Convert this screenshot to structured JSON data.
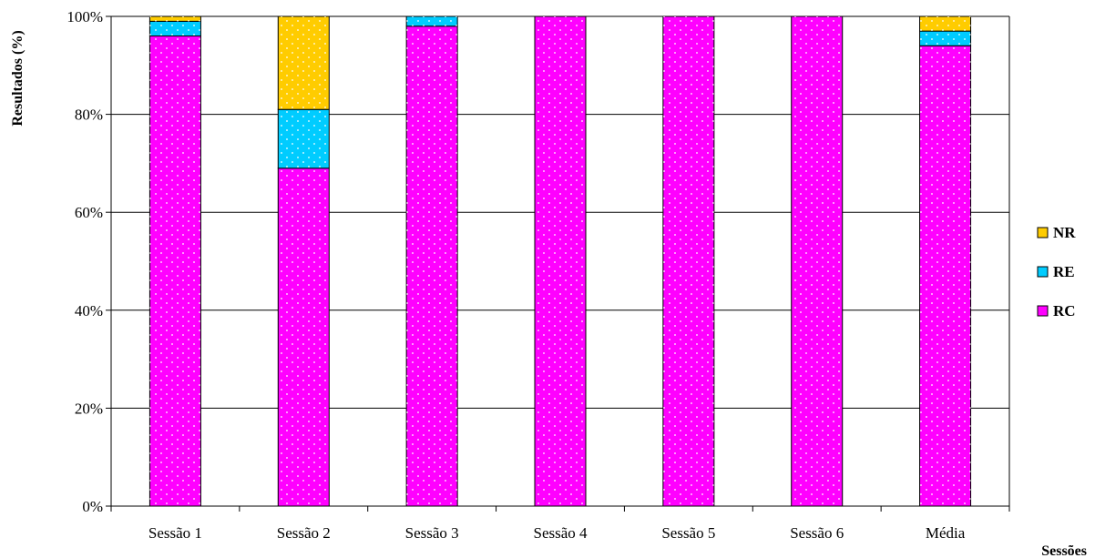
{
  "chart_data": {
    "type": "bar",
    "stacked": true,
    "percent": true,
    "categories": [
      "Sessão 1",
      "Sessão 2",
      "Sessão 3",
      "Sessão 4",
      "Sessão 5",
      "Sessão 6",
      "Média"
    ],
    "series": [
      {
        "name": "RC",
        "color": "#ff00ff",
        "values": [
          96,
          69,
          98,
          100,
          100,
          100,
          94
        ]
      },
      {
        "name": "RE",
        "color": "#00ccff",
        "values": [
          3,
          12,
          2,
          0,
          0,
          0,
          3
        ]
      },
      {
        "name": "NR",
        "color": "#ffcc00",
        "values": [
          1,
          19,
          0,
          0,
          0,
          0,
          3
        ]
      }
    ],
    "xlabel": "Sessões",
    "ylabel": "Resultados (%)",
    "ylim": [
      0,
      100
    ],
    "yticks": [
      "0%",
      "20%",
      "40%",
      "60%",
      "80%",
      "100%"
    ],
    "grid": true,
    "legend_position": "right",
    "legend_order": [
      "NR",
      "RE",
      "RC"
    ]
  }
}
